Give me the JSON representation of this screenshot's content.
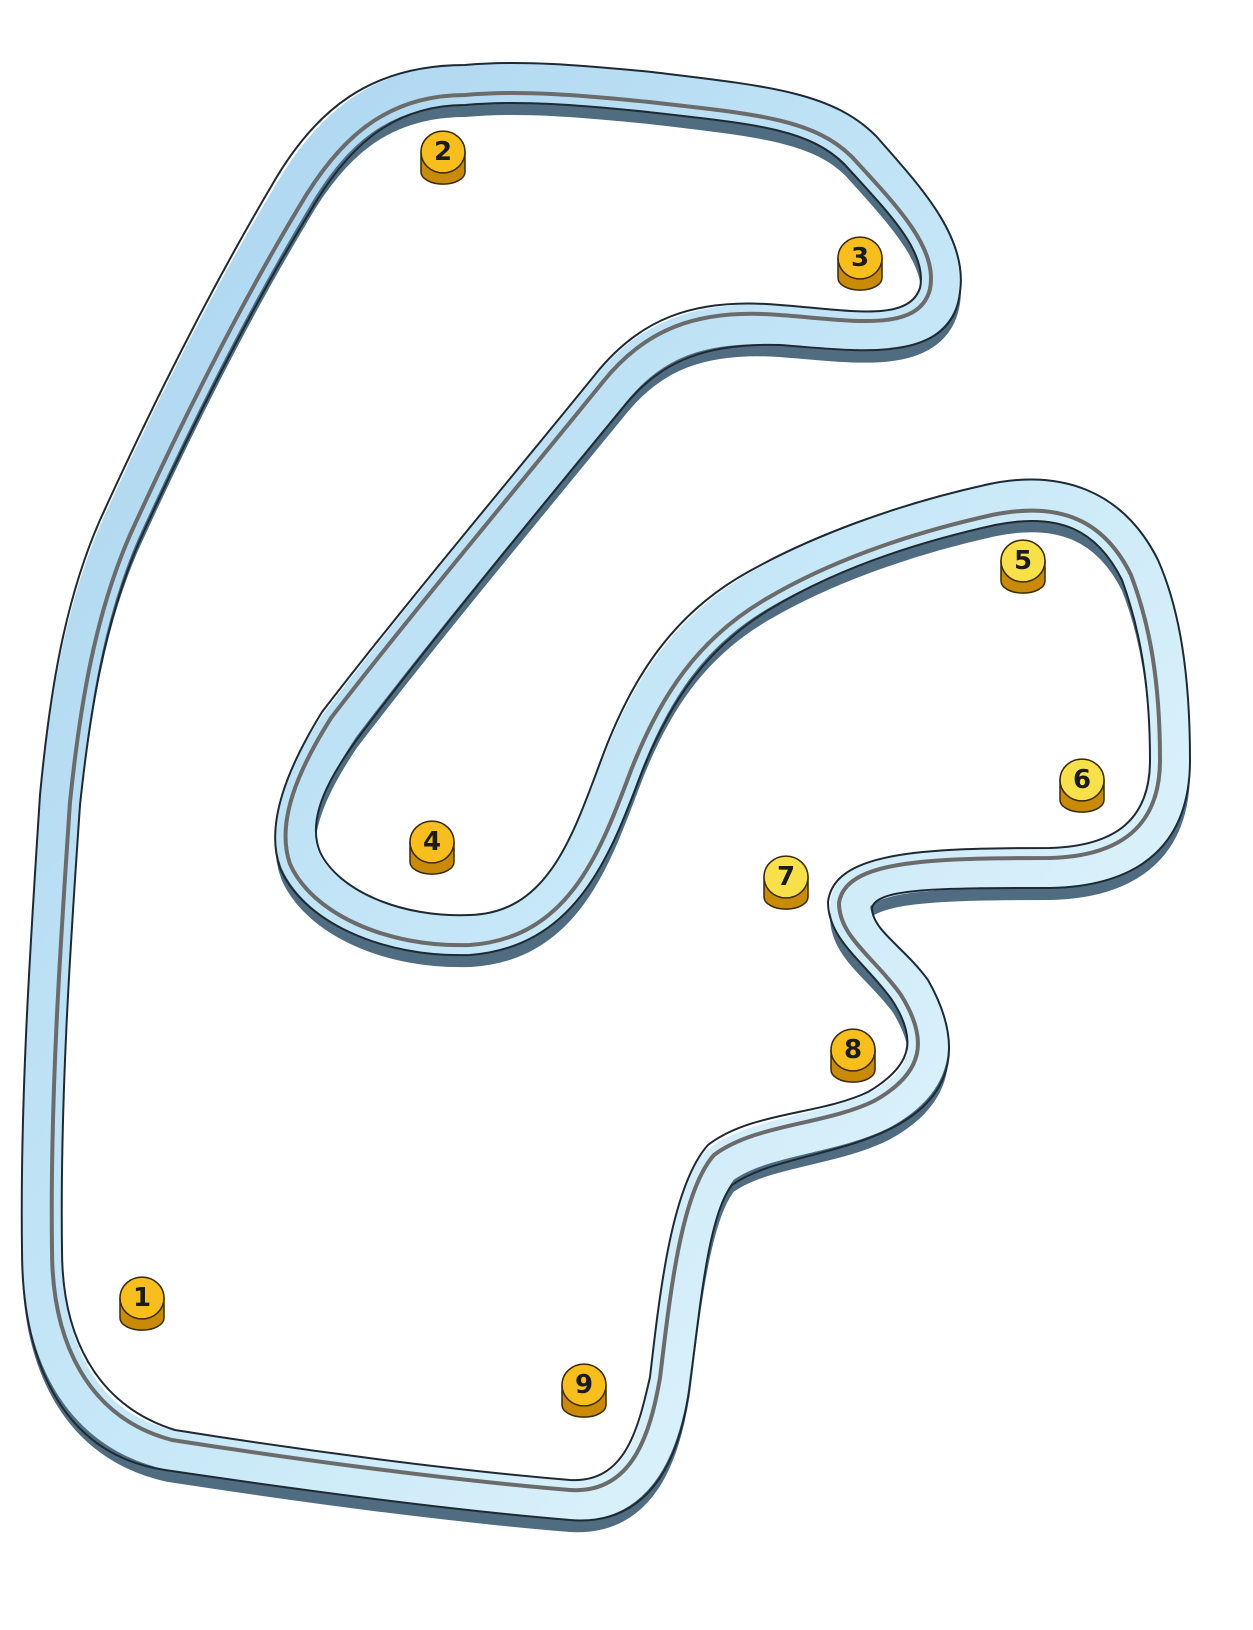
{
  "diagram": {
    "colors": {
      "background": "#ffffff",
      "track_fill": "#b7dcf3",
      "track_fill_light": "#dff4fb",
      "track_side": "#4f6c80",
      "track_outline": "#1e2a33",
      "track_inner_line": "#6b6b6b",
      "marker_top": "#f7be1d",
      "marker_side": "#c98b06",
      "marker_top_light": "#f8e04a",
      "marker_outline": "#3a2a05"
    },
    "markers": [
      {
        "id": "1",
        "label": "1",
        "tone": "dark"
      },
      {
        "id": "2",
        "label": "2",
        "tone": "dark"
      },
      {
        "id": "3",
        "label": "3",
        "tone": "dark"
      },
      {
        "id": "4",
        "label": "4",
        "tone": "dark"
      },
      {
        "id": "5",
        "label": "5",
        "tone": "light"
      },
      {
        "id": "6",
        "label": "6",
        "tone": "light"
      },
      {
        "id": "7",
        "label": "7",
        "tone": "light"
      },
      {
        "id": "8",
        "label": "8",
        "tone": "dark"
      },
      {
        "id": "9",
        "label": "9",
        "tone": "dark"
      }
    ]
  }
}
